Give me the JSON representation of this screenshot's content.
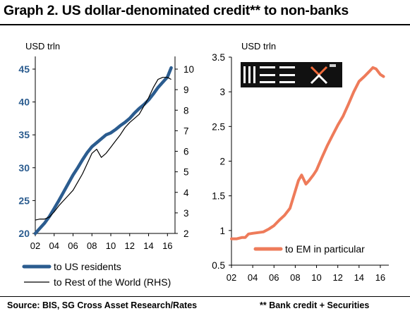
{
  "title": "Graph 2. US dollar-denominated credit** to non-banks",
  "footer": {
    "source": "Source: BIS, SG Cross Asset Research/Rates",
    "note": "** Bank credit + Securities"
  },
  "colors": {
    "blue": "#2b5c8f",
    "black": "#000000",
    "orange": "#ee7b5a",
    "logo_accent": "#f26b3a"
  },
  "chart_data": [
    {
      "type": "line",
      "unit_label": "USD trln",
      "x_ticks": [
        "02",
        "04",
        "06",
        "08",
        "10",
        "12",
        "14",
        "16"
      ],
      "xlim": [
        2002,
        2016.8
      ],
      "ylim_left": [
        20,
        45
      ],
      "yticks_left": [
        "20",
        "25",
        "30",
        "35",
        "40",
        "45"
      ],
      "ylim_right": [
        2,
        10
      ],
      "yticks_right": [
        "2",
        "3",
        "4",
        "5",
        "6",
        "7",
        "8",
        "9",
        "10"
      ],
      "legend_position": "bottom",
      "series": [
        {
          "name": "to US residents",
          "axis": "left",
          "color": "#2b5c8f",
          "x": [
            2002.0,
            2002.5,
            2003.0,
            2003.5,
            2004.0,
            2004.5,
            2005.0,
            2005.5,
            2006.0,
            2006.5,
            2007.0,
            2007.5,
            2008.0,
            2008.5,
            2009.0,
            2009.5,
            2010.0,
            2010.5,
            2011.0,
            2011.5,
            2012.0,
            2012.5,
            2013.0,
            2013.5,
            2014.0,
            2014.5,
            2015.0,
            2015.5,
            2016.0,
            2016.4
          ],
          "y": [
            20.0,
            20.8,
            21.6,
            22.6,
            23.8,
            25.0,
            26.3,
            27.6,
            28.9,
            30.0,
            31.2,
            32.3,
            33.2,
            33.8,
            34.4,
            35.0,
            35.3,
            35.8,
            36.4,
            36.9,
            37.5,
            38.3,
            39.0,
            39.6,
            40.3,
            41.2,
            42.2,
            43.0,
            43.8,
            45.2
          ]
        },
        {
          "name": "to Rest of the World (RHS)",
          "axis": "right",
          "color": "#000000",
          "x": [
            2002.0,
            2002.5,
            2003.0,
            2003.5,
            2004.0,
            2004.5,
            2005.0,
            2005.5,
            2006.0,
            2006.5,
            2007.0,
            2007.5,
            2008.0,
            2008.5,
            2009.0,
            2009.5,
            2010.0,
            2010.5,
            2011.0,
            2011.5,
            2012.0,
            2012.5,
            2013.0,
            2013.5,
            2014.0,
            2014.5,
            2015.0,
            2015.5,
            2016.0,
            2016.4
          ],
          "y": [
            2.65,
            2.7,
            2.7,
            2.8,
            3.05,
            3.35,
            3.6,
            3.85,
            4.1,
            4.5,
            4.9,
            5.4,
            5.9,
            6.1,
            5.7,
            5.9,
            6.2,
            6.5,
            6.8,
            7.15,
            7.4,
            7.6,
            7.8,
            8.2,
            8.6,
            9.1,
            9.5,
            9.6,
            9.6,
            9.5
          ]
        }
      ]
    },
    {
      "type": "line",
      "unit_label": "USD trln",
      "x_ticks": [
        "02",
        "04",
        "06",
        "08",
        "10",
        "12",
        "14",
        "16"
      ],
      "xlim": [
        2002,
        2016.8
      ],
      "ylim": [
        0.5,
        3.5
      ],
      "yticks": [
        "0.5",
        "1",
        "1.5",
        "2",
        "2.5",
        "3",
        "3.5"
      ],
      "legend_position": "bottom",
      "series": [
        {
          "name": "to EM in particular",
          "color": "#ee7b5a",
          "x": [
            2002.0,
            2002.5,
            2003.0,
            2003.3,
            2003.6,
            2004.0,
            2004.5,
            2005.0,
            2005.5,
            2006.0,
            2006.5,
            2007.0,
            2007.5,
            2008.0,
            2008.3,
            2008.6,
            2009.0,
            2009.3,
            2009.7,
            2010.0,
            2010.5,
            2011.0,
            2011.5,
            2012.0,
            2012.5,
            2013.0,
            2013.5,
            2014.0,
            2014.5,
            2015.0,
            2015.3,
            2015.6,
            2016.0,
            2016.3
          ],
          "y": [
            0.88,
            0.88,
            0.9,
            0.9,
            0.95,
            0.96,
            0.97,
            0.98,
            1.02,
            1.07,
            1.15,
            1.22,
            1.32,
            1.57,
            1.72,
            1.8,
            1.67,
            1.72,
            1.8,
            1.87,
            2.05,
            2.22,
            2.37,
            2.52,
            2.65,
            2.82,
            3.0,
            3.15,
            3.22,
            3.3,
            3.35,
            3.33,
            3.25,
            3.22
          ]
        }
      ]
    }
  ]
}
